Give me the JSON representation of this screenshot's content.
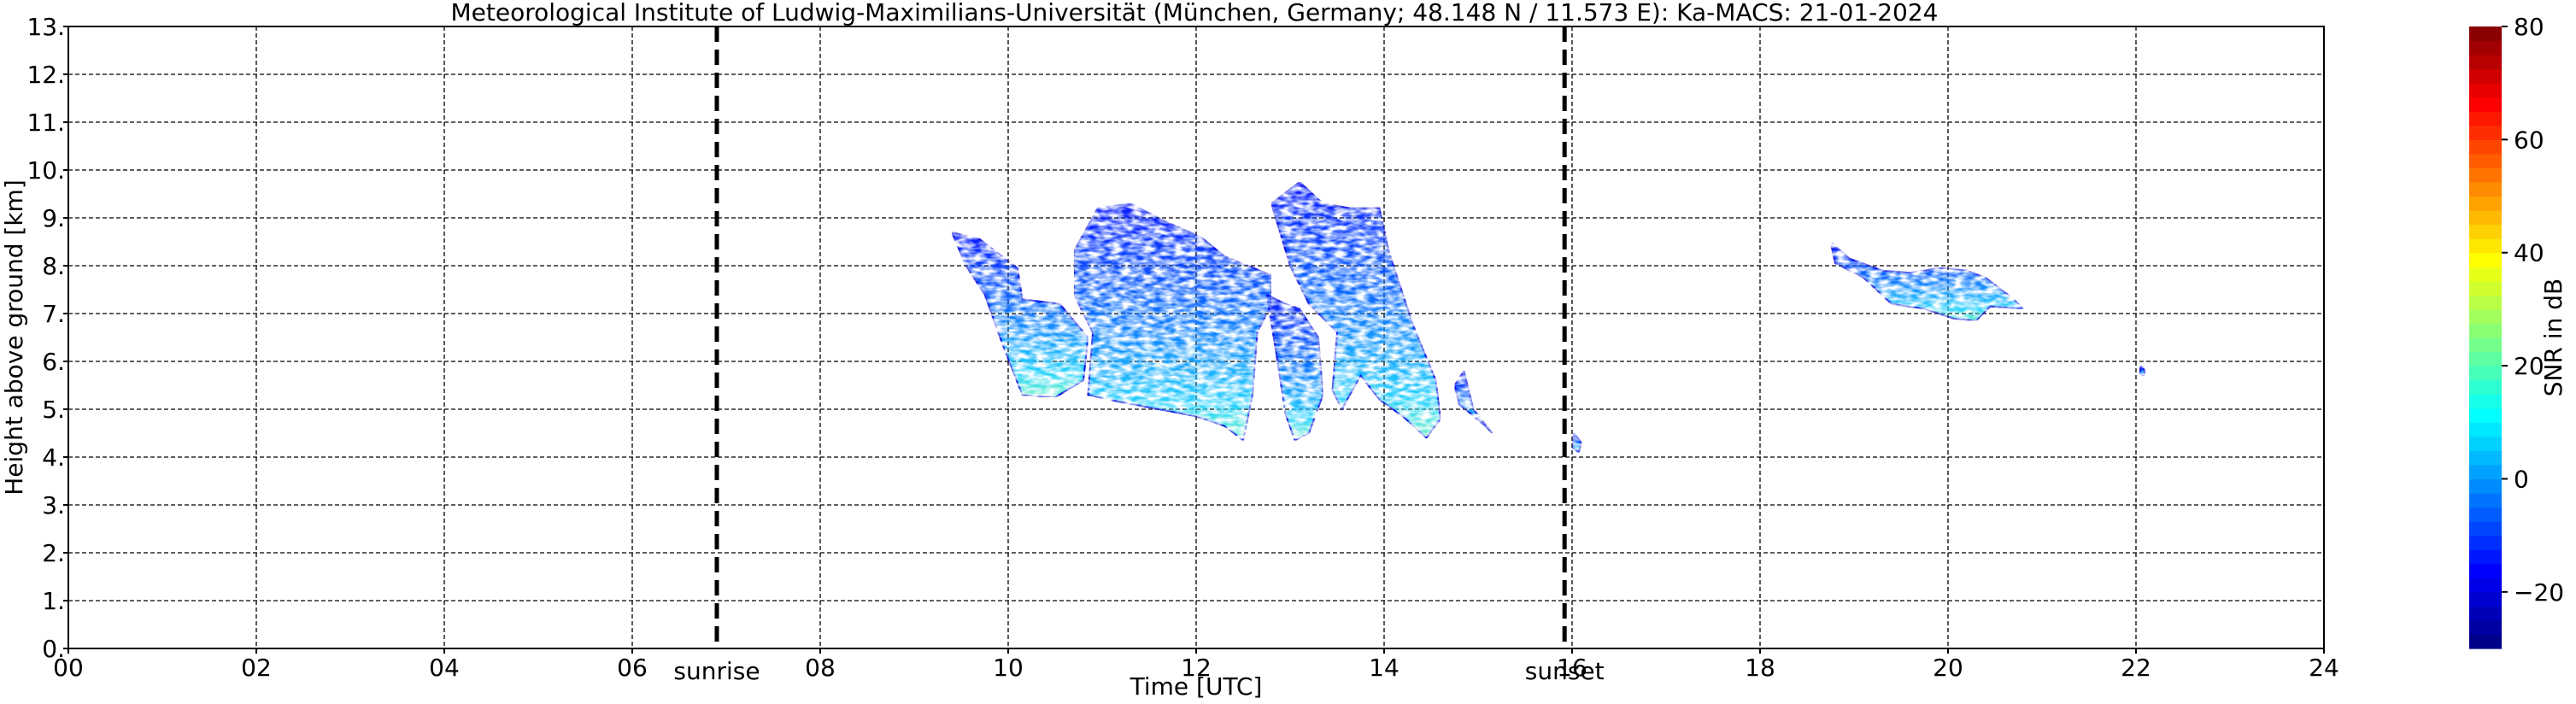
{
  "chart_data": {
    "type": "heatmap",
    "title": "Meteorological Institute of Ludwig-Maximilians-Universität (München, Germany; 48.148 N / 11.573 E):    Ka-MACS: 21-01-2024",
    "xlabel": "Time [UTC]",
    "ylabel": "Height above ground [km]",
    "xlim": [
      0,
      24
    ],
    "ylim": [
      0,
      13
    ],
    "x_ticks": [
      "00",
      "02",
      "04",
      "06",
      "08",
      "10",
      "12",
      "14",
      "16",
      "18",
      "20",
      "22",
      "24"
    ],
    "y_ticks": [
      "0.",
      "1.",
      "2.",
      "3.",
      "4.",
      "5.",
      "6.",
      "7.",
      "8.",
      "9.",
      "10.",
      "11.",
      "12.",
      "13."
    ],
    "grid": true,
    "vlines": [
      {
        "x": 6.9,
        "label": "sunrise"
      },
      {
        "x": 15.92,
        "label": "sunset"
      }
    ],
    "colorbar": {
      "label": "SNR in dB",
      "range": [
        -30,
        80
      ],
      "ticks": [
        "−20",
        "0",
        "20",
        "40",
        "60",
        "80"
      ],
      "colormap": "jet"
    },
    "echo_regions": [
      {
        "time_range": [
          9.4,
          10.8
        ],
        "height_range_km": [
          5.2,
          8.7
        ],
        "snr_range_db": [
          -25,
          5
        ]
      },
      {
        "time_range": [
          10.7,
          12.9
        ],
        "height_range_km": [
          4.2,
          9.3
        ],
        "snr_range_db": [
          -25,
          15
        ]
      },
      {
        "time_range": [
          12.7,
          13.4
        ],
        "height_range_km": [
          4.3,
          7.5
        ],
        "snr_range_db": [
          -25,
          5
        ]
      },
      {
        "time_range": [
          12.8,
          14.6
        ],
        "height_range_km": [
          4.4,
          9.8
        ],
        "snr_range_db": [
          -25,
          15
        ]
      },
      {
        "time_range": [
          14.8,
          15.2
        ],
        "height_range_km": [
          4.5,
          6.0
        ],
        "snr_range_db": [
          -25,
          -10
        ]
      },
      {
        "time_range": [
          16.0,
          16.1
        ],
        "height_range_km": [
          4.1,
          4.5
        ],
        "snr_range_db": [
          -25,
          -10
        ]
      },
      {
        "time_range": [
          18.7,
          20.8
        ],
        "height_range_km": [
          6.8,
          8.5
        ],
        "snr_range_db": [
          -25,
          0
        ]
      },
      {
        "time_range": [
          22.05,
          22.1
        ],
        "height_range_km": [
          5.7,
          5.9
        ],
        "snr_range_db": [
          -25,
          -15
        ]
      }
    ]
  }
}
